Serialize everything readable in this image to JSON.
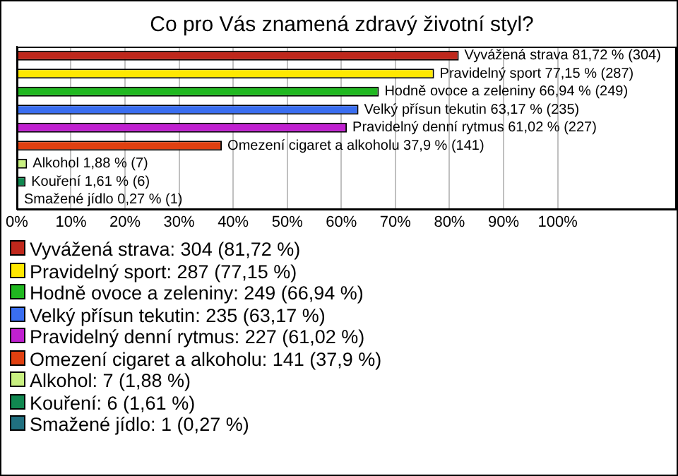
{
  "chart_data": {
    "type": "bar",
    "orientation": "horizontal",
    "stacked": true,
    "title": "Co pro Vás znamená zdravý životní styl?",
    "categories": [
      null,
      null,
      null,
      null,
      null,
      null,
      null,
      null,
      null
    ],
    "series": [
      {
        "name": "Vyvážená strava: 304 (81,72 %)",
        "color": "#c0281c",
        "values": [
          81.72,
          null,
          null,
          null,
          null,
          null,
          null,
          null,
          null
        ],
        "value_labels": [
          "Vyvážená strava 81,72 % (304)",
          null,
          null,
          null,
          null,
          null,
          null,
          null,
          null
        ]
      },
      {
        "name": "Pravidelný sport: 287 (77,15 %)",
        "color": "#ffe800",
        "values": [
          null,
          77.15,
          null,
          null,
          null,
          null,
          null,
          null,
          null
        ],
        "value_labels": [
          null,
          "Pravidelný sport 77,15 % (287)",
          null,
          null,
          null,
          null,
          null,
          null,
          null
        ]
      },
      {
        "name": "Hodně ovoce a zeleniny: 249 (66,94 %)",
        "color": "#20b820",
        "values": [
          null,
          null,
          66.94,
          null,
          null,
          null,
          null,
          null,
          null
        ],
        "value_labels": [
          null,
          null,
          "Hodně ovoce a zeleniny 66,94 % (249)",
          null,
          null,
          null,
          null,
          null,
          null
        ]
      },
      {
        "name": "Velký přísun tekutin: 235 (63,17 %)",
        "color": "#3a6ef0",
        "values": [
          null,
          null,
          null,
          63.17,
          null,
          null,
          null,
          null,
          null
        ],
        "value_labels": [
          null,
          null,
          null,
          "Velký přísun tekutin 63,17 % (235)",
          null,
          null,
          null,
          null,
          null
        ]
      },
      {
        "name": "Pravidelný denní rytmus: 227 (61,02 %)",
        "color": "#c020d0",
        "values": [
          null,
          null,
          null,
          null,
          61.02,
          null,
          null,
          null,
          null
        ],
        "value_labels": [
          null,
          null,
          null,
          null,
          "Pravidelný denní rytmus 61,02 % (227)",
          null,
          null,
          null,
          null
        ]
      },
      {
        "name": "Omezení cigaret a alkoholu: 141 (37,9 %)",
        "color": "#e04010",
        "values": [
          null,
          null,
          null,
          null,
          null,
          37.9,
          null,
          null,
          null
        ],
        "value_labels": [
          null,
          null,
          null,
          null,
          null,
          "Omezení cigaret a alkoholu 37,9 % (141)",
          null,
          null,
          null
        ]
      },
      {
        "name": "Alkohol: 7 (1,88 %)",
        "color": "#c8f080",
        "values": [
          null,
          null,
          null,
          null,
          null,
          null,
          1.88,
          null,
          null
        ],
        "value_labels": [
          null,
          null,
          null,
          null,
          null,
          null,
          "Alkohol 1,88 % (7)",
          null,
          null
        ]
      },
      {
        "name": "Kouření: 6 (1,61 %)",
        "color": "#108850",
        "values": [
          null,
          null,
          null,
          null,
          null,
          null,
          null,
          1.61,
          null
        ],
        "value_labels": [
          null,
          null,
          null,
          null,
          null,
          null,
          null,
          "Kouření 1,61 % (6)",
          null
        ]
      },
      {
        "name": "Smažené jídlo: 1 (0,27 %)",
        "color": "#207080",
        "values": [
          null,
          null,
          null,
          null,
          null,
          null,
          null,
          null,
          0.27
        ],
        "value_labels": [
          null,
          null,
          null,
          null,
          null,
          null,
          null,
          null,
          "Smažené jídlo 0,27 % (1)"
        ]
      }
    ],
    "xlim": [
      0,
      122
    ],
    "xticks": [
      {
        "value": 0,
        "label": "0%"
      },
      {
        "value": 10,
        "label": "10%"
      },
      {
        "value": 20,
        "label": "20%"
      },
      {
        "value": 30,
        "label": "30%"
      },
      {
        "value": 40,
        "label": "40%"
      },
      {
        "value": 50,
        "label": "50%"
      },
      {
        "value": 60,
        "label": "60%"
      },
      {
        "value": 70,
        "label": "70%"
      },
      {
        "value": 80,
        "label": "80%"
      },
      {
        "value": 90,
        "label": "90%"
      },
      {
        "value": 100,
        "label": "100%"
      }
    ],
    "grid": "x",
    "legend": "bottom",
    "tick_labels": "x"
  }
}
